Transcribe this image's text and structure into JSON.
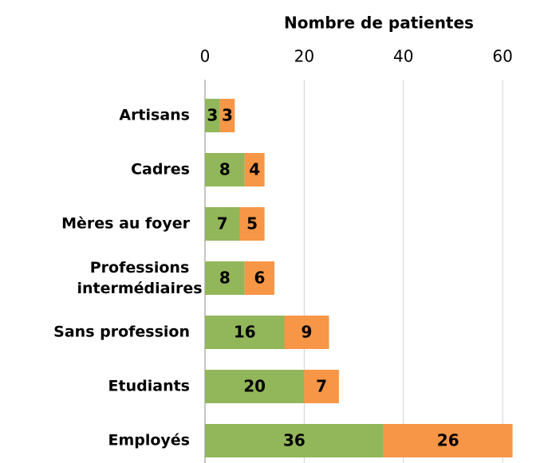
{
  "chart_data": {
    "type": "stacked-bar-horizontal",
    "x_axis_label": "Nombre de patientes",
    "categories": [
      "Artisans",
      "Cadres",
      "Mères au foyer",
      "Professions intermédiaires",
      "Sans profession",
      "Etudiants",
      "Employés"
    ],
    "series": [
      {
        "color": "#92b65a",
        "values": [
          3,
          8,
          7,
          8,
          16,
          20,
          36
        ]
      },
      {
        "color": "#f79646",
        "values": [
          3,
          4,
          5,
          6,
          9,
          7,
          26
        ]
      }
    ],
    "xlim": [
      0,
      64
    ],
    "xticks": [
      0,
      20,
      40,
      60
    ],
    "grid": true,
    "x_axis_position": "top"
  }
}
